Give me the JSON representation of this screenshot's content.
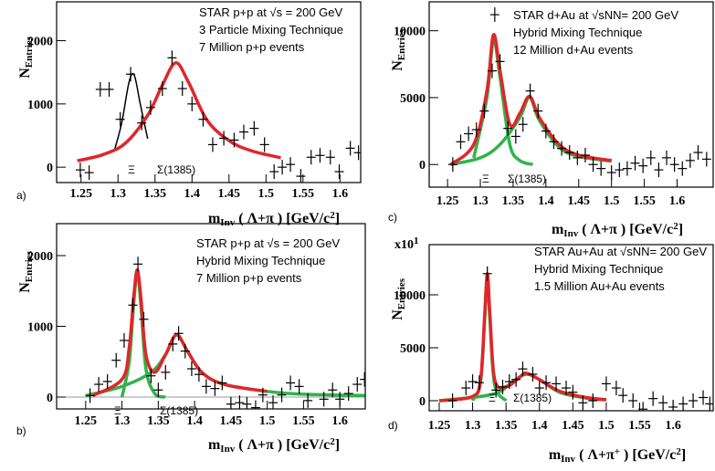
{
  "chart_data": [
    {
      "type": "scatter",
      "panel": "a)",
      "text_box": [
        "STAR p+p at √s = 200 GeV",
        "3 Particle Mixing Technique",
        "7 Million p+p events"
      ],
      "annotations": [
        "Ξ",
        "Σ(1385)"
      ],
      "y_label": [
        {
          "text": "N"
        },
        {
          "text": "Entries",
          "pos": "sub"
        }
      ],
      "x_label": [
        {
          "text": "m"
        },
        {
          "text": "Inv",
          "pos": "sub"
        },
        {
          "text": " ( Λ+π )  [GeV/c"
        },
        {
          "text": "2",
          "pos": "sup"
        },
        {
          "text": "]"
        }
      ],
      "xlim": [
        1.217,
        1.628
      ],
      "ylim": [
        -243,
        2614
      ],
      "xticks": [
        1.25,
        1.3,
        1.35,
        1.4,
        1.45,
        1.5,
        1.55,
        1.6
      ],
      "yticks": [
        0,
        1000,
        2000
      ],
      "series": [
        {
          "color": "#000000",
          "x": [
            1.249,
            1.261,
            1.276,
            1.288,
            1.303,
            1.317,
            1.332,
            1.344,
            1.36,
            1.373,
            1.387,
            1.4,
            1.415,
            1.428,
            1.443,
            1.457,
            1.47,
            1.484,
            1.498,
            1.511,
            1.522,
            1.533,
            1.547,
            1.561,
            1.573,
            1.587,
            1.599,
            1.614,
            1.625
          ],
          "values": [
            -43,
            -86,
            1230,
            1230,
            757,
            1471,
            700,
            943,
            1243,
            1729,
            1243,
            1000,
            757,
            357,
            457,
            429,
            557,
            614,
            357,
            -71,
            0,
            43,
            -143,
            157,
            186,
            157,
            -71,
            300,
            229
          ]
        }
      ],
      "fits": [
        {
          "color": "#000000",
          "x": [
            1.295,
            1.305,
            1.315,
            1.322,
            1.33,
            1.34
          ],
          "values": [
            260,
            700,
            1350,
            1450,
            1000,
            450
          ]
        },
        {
          "color": "#e0262b",
          "x": [
            1.245,
            1.28,
            1.31,
            1.34,
            1.36,
            1.378,
            1.395,
            1.42,
            1.45,
            1.48,
            1.52
          ],
          "values": [
            100,
            200,
            380,
            820,
            1300,
            1650,
            1350,
            750,
            420,
            260,
            150
          ]
        }
      ]
    },
    {
      "type": "scatter",
      "panel": "b)",
      "text_box": [
        "STAR p+p at √s = 200 GeV",
        "Hybrid Mixing Technique",
        "7 Million p+p events"
      ],
      "annotations": [
        "Ξ",
        "Σ(1385)"
      ],
      "y_label": [
        {
          "text": "N"
        },
        {
          "text": "Entries",
          "pos": "sub"
        }
      ],
      "x_label": [
        {
          "text": "m"
        },
        {
          "text": "Inv",
          "pos": "sub"
        },
        {
          "text": " ( Λ+π )  [GeV/c"
        },
        {
          "text": "2",
          "pos": "sup"
        },
        {
          "text": "]"
        }
      ],
      "xlim": [
        1.21,
        1.635
      ],
      "ylim": [
        -168,
        2452
      ],
      "zero_line": true,
      "xticks": [
        1.25,
        1.3,
        1.35,
        1.4,
        1.45,
        1.5,
        1.55,
        1.6
      ],
      "yticks": [
        0,
        1000,
        2000
      ],
      "series": [
        {
          "color": "#000000",
          "x": [
            1.256,
            1.268,
            1.28,
            1.292,
            1.303,
            1.315,
            1.322,
            1.33,
            1.34,
            1.35,
            1.36,
            1.37,
            1.378,
            1.387,
            1.396,
            1.406,
            1.416,
            1.428,
            1.438,
            1.45,
            1.462,
            1.472,
            1.484,
            1.494,
            1.508,
            1.52,
            1.532,
            1.544,
            1.556,
            1.567,
            1.578,
            1.59,
            1.6,
            1.612,
            1.624,
            1.634
          ],
          "values": [
            20,
            180,
            220,
            520,
            800,
            1300,
            1880,
            1100,
            300,
            100,
            350,
            750,
            900,
            650,
            400,
            320,
            150,
            120,
            200,
            -100,
            -80,
            -100,
            -150,
            30,
            -80,
            30,
            200,
            150,
            -50,
            -300,
            -30,
            100,
            -30,
            50,
            180,
            250
          ]
        }
      ],
      "fits": [
        {
          "color": "#2fb34a",
          "x": [
            1.3,
            1.31,
            1.316,
            1.321,
            1.326,
            1.333,
            1.345,
            1.36
          ],
          "values": [
            0,
            500,
            1300,
            1750,
            1300,
            400,
            50,
            0
          ]
        },
        {
          "color": "#2fb34a",
          "x": [
            1.25,
            1.3,
            1.34,
            1.36,
            1.375,
            1.39,
            1.41,
            1.44,
            1.5,
            1.55,
            1.64
          ],
          "values": [
            20,
            150,
            350,
            600,
            880,
            650,
            350,
            180,
            80,
            40,
            20
          ]
        },
        {
          "color": "#e0262b",
          "x": [
            1.26,
            1.3,
            1.31,
            1.316,
            1.321,
            1.326,
            1.333,
            1.345,
            1.36,
            1.375,
            1.39,
            1.41,
            1.44,
            1.5
          ],
          "values": [
            20,
            250,
            700,
            1400,
            1800,
            1400,
            600,
            350,
            600,
            880,
            650,
            350,
            180,
            80
          ]
        }
      ]
    },
    {
      "type": "scatter",
      "panel": "c)",
      "text_box": [
        "STAR d+Au at √sNN= 200 GeV",
        "Hybrid Mixing Technique",
        "12 Million d+Au events"
      ],
      "annotations": [
        "Ξ",
        "Σ(1385)"
      ],
      "y_label": [
        {
          "text": "N"
        },
        {
          "text": "Entries",
          "pos": "sub"
        }
      ],
      "x_label": [
        {
          "text": "m"
        },
        {
          "text": "Inv",
          "pos": "sub"
        },
        {
          "text": " ( Λ+π )  [GeV/c"
        },
        {
          "text": "2",
          "pos": "sup"
        },
        {
          "text": "]"
        }
      ],
      "xlim": [
        1.222,
        1.655
      ],
      "ylim": [
        -1690,
        12160
      ],
      "xticks": [
        1.25,
        1.3,
        1.35,
        1.4,
        1.45,
        1.5,
        1.55,
        1.6
      ],
      "yticks": [
        0,
        5000,
        10000
      ],
      "series": [
        {
          "color": "#000000",
          "x": [
            1.258,
            1.27,
            1.282,
            1.294,
            1.306,
            1.318,
            1.322,
            1.33,
            1.342,
            1.354,
            1.365,
            1.376,
            1.388,
            1.4,
            1.412,
            1.424,
            1.436,
            1.448,
            1.46,
            1.472,
            1.484,
            1.5,
            1.512,
            1.524,
            1.536,
            1.548,
            1.56,
            1.572,
            1.584,
            1.596,
            1.608,
            1.62,
            1.632,
            1.645
          ],
          "values": [
            0,
            1700,
            2300,
            2600,
            4000,
            7000,
            11200,
            7700,
            2700,
            2100,
            3000,
            5500,
            4000,
            2500,
            1700,
            1200,
            900,
            500,
            700,
            0,
            -300,
            -600,
            -400,
            -300,
            100,
            -100,
            500,
            -400,
            500,
            0,
            -300,
            300,
            900,
            400
          ]
        }
      ],
      "fits": [
        {
          "color": "#2fb34a",
          "x": [
            1.29,
            1.31,
            1.32,
            1.33,
            1.345,
            1.36,
            1.38
          ],
          "values": [
            500,
            5000,
            9300,
            6500,
            1500,
            300,
            0
          ]
        },
        {
          "color": "#2fb34a",
          "x": [
            1.255,
            1.3,
            1.33,
            1.36,
            1.375,
            1.39,
            1.42,
            1.45,
            1.5
          ],
          "values": [
            0,
            500,
            1500,
            3500,
            5000,
            3300,
            1300,
            600,
            250
          ]
        },
        {
          "color": "#e0262b",
          "x": [
            1.255,
            1.29,
            1.31,
            1.32,
            1.33,
            1.345,
            1.36,
            1.375,
            1.39,
            1.42,
            1.45,
            1.5
          ],
          "values": [
            0,
            1500,
            5500,
            9700,
            7000,
            3000,
            3800,
            5100,
            3500,
            1500,
            700,
            300
          ]
        }
      ]
    },
    {
      "type": "scatter",
      "panel": "d)",
      "text_box": [
        "STAR Au+Au at √sNN= 200 GeV",
        "Hybrid Mixing Technique",
        "1.5 Million Au+Au events"
      ],
      "annotations": [
        "Ξ",
        "Σ(1385)"
      ],
      "scale_label": [
        {
          "text": "x10"
        },
        {
          "text": "1",
          "pos": "sup"
        }
      ],
      "y_label": [
        {
          "text": "N"
        },
        {
          "text": "Entries",
          "pos": "sub"
        }
      ],
      "x_label": [
        {
          "text": "m"
        },
        {
          "text": "Inv",
          "pos": "sub"
        },
        {
          "text": " ( Λ+π"
        },
        {
          "text": "+",
          "pos": "sup"
        },
        {
          "text": " )  [GeV/c"
        },
        {
          "text": "2",
          "pos": "sup"
        },
        {
          "text": "]"
        }
      ],
      "xlim": [
        1.235,
        1.66
      ],
      "ylim": [
        -950,
        14740
      ],
      "xticks": [
        1.25,
        1.3,
        1.35,
        1.4,
        1.45,
        1.5,
        1.55,
        1.6
      ],
      "yticks": [
        0,
        5000,
        10000
      ],
      "series": [
        {
          "color": "#000000",
          "x": [
            1.27,
            1.29,
            1.3,
            1.31,
            1.322,
            1.335,
            1.345,
            1.355,
            1.365,
            1.375,
            1.39,
            1.4,
            1.41,
            1.425,
            1.44,
            1.45,
            1.465,
            1.48,
            1.5,
            1.515,
            1.525,
            1.54,
            1.555,
            1.57,
            1.585,
            1.6,
            1.615,
            1.63,
            1.645,
            1.655
          ],
          "values": [
            0,
            1200,
            1800,
            1700,
            12000,
            1000,
            1300,
            1800,
            2000,
            3000,
            2500,
            1200,
            1700,
            1600,
            1200,
            800,
            -200,
            0,
            1600,
            1200,
            500,
            0,
            -800,
            200,
            -200,
            -600,
            -300,
            0,
            300,
            -300
          ]
        }
      ],
      "fits": [
        {
          "color": "#2fb34a",
          "x": [
            1.3,
            1.312,
            1.318,
            1.322,
            1.326,
            1.333,
            1.35
          ],
          "values": [
            0,
            1800,
            7500,
            11500,
            7500,
            1500,
            0
          ]
        },
        {
          "color": "#2fb34a",
          "x": [
            1.25,
            1.33,
            1.36,
            1.38,
            1.4,
            1.43,
            1.47,
            1.5
          ],
          "values": [
            0,
            600,
            1800,
            2500,
            2000,
            800,
            250,
            80
          ]
        },
        {
          "color": "#e0262b",
          "x": [
            1.25,
            1.3,
            1.312,
            1.318,
            1.322,
            1.326,
            1.333,
            1.35,
            1.37,
            1.38,
            1.4,
            1.43,
            1.47,
            1.5
          ],
          "values": [
            0,
            400,
            2000,
            8000,
            12000,
            8000,
            2000,
            1300,
            2200,
            2600,
            2000,
            900,
            300,
            100
          ]
        }
      ]
    }
  ]
}
